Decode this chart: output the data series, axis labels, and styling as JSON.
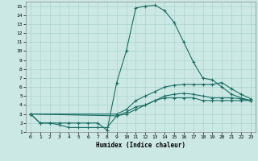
{
  "xlabel": "Humidex (Indice chaleur)",
  "bg_color": "#cce8e4",
  "grid_color": "#aad4cc",
  "line_color": "#1a6e64",
  "xlim": [
    -0.5,
    23.5
  ],
  "ylim": [
    1,
    15.5
  ],
  "xticks": [
    0,
    1,
    2,
    3,
    4,
    5,
    6,
    7,
    8,
    9,
    10,
    11,
    12,
    13,
    14,
    15,
    16,
    17,
    18,
    19,
    20,
    21,
    22,
    23
  ],
  "yticks": [
    1,
    2,
    3,
    4,
    5,
    6,
    7,
    8,
    9,
    10,
    11,
    12,
    13,
    14,
    15
  ],
  "line1_x": [
    0,
    1,
    2,
    3,
    4,
    5,
    6,
    7,
    8,
    9,
    10,
    11,
    12,
    13,
    14,
    15,
    16,
    17,
    18,
    19,
    20,
    21,
    22,
    23
  ],
  "line1_y": [
    3,
    2,
    2,
    2,
    2,
    2,
    2,
    2,
    1.2,
    6.5,
    10,
    14.8,
    15,
    15.1,
    14.5,
    13.2,
    11,
    8.8,
    7,
    6.8,
    6,
    5.2,
    4.8,
    4.5
  ],
  "line2_x": [
    0,
    9,
    10,
    11,
    12,
    13,
    14,
    15,
    16,
    17,
    18,
    19,
    20,
    21,
    22,
    23
  ],
  "line2_y": [
    3,
    3,
    3.5,
    4.5,
    5,
    5.5,
    6,
    6.2,
    6.3,
    6.3,
    6.3,
    6.3,
    6.5,
    5.8,
    5.2,
    4.7
  ],
  "line3_x": [
    0,
    9,
    10,
    11,
    12,
    13,
    14,
    15,
    16,
    17,
    18,
    19,
    20,
    21,
    22,
    23
  ],
  "line3_y": [
    3,
    2.8,
    3,
    3.5,
    4,
    4.5,
    5,
    5.2,
    5.3,
    5.2,
    5,
    4.8,
    4.8,
    4.8,
    4.7,
    4.5
  ],
  "line4_x": [
    0,
    1,
    2,
    3,
    4,
    5,
    6,
    7,
    8,
    9,
    10,
    11,
    12,
    13,
    14,
    15,
    16,
    17,
    18,
    19,
    20,
    21,
    22,
    23
  ],
  "line4_y": [
    3,
    2,
    2,
    1.8,
    1.5,
    1.5,
    1.5,
    1.5,
    1.5,
    2.8,
    3.2,
    3.8,
    4,
    4.5,
    4.8,
    4.8,
    4.8,
    4.8,
    4.5,
    4.5,
    4.5,
    4.5,
    4.5,
    4.5
  ]
}
